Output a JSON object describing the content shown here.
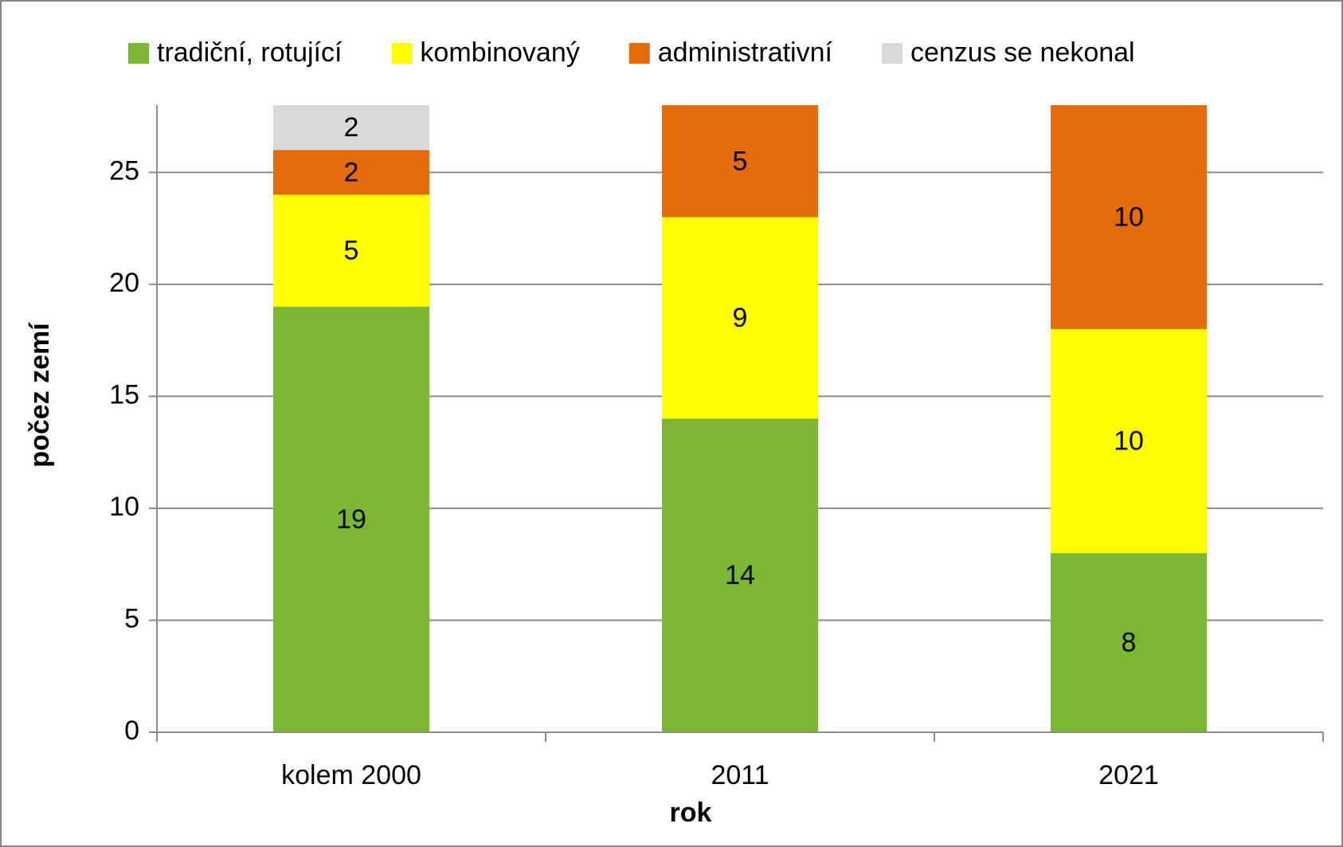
{
  "chart_data": {
    "type": "stacked_bar",
    "categories": [
      "kolem 2000",
      "2011",
      "2021"
    ],
    "series": [
      {
        "name": "tradiční, rotující",
        "color": "#7ab834",
        "values": [
          19,
          14,
          8
        ]
      },
      {
        "name": "kombinovaný",
        "color": "#ffff00",
        "values": [
          5,
          9,
          10
        ]
      },
      {
        "name": "administrativní",
        "color": "#e46c0a",
        "values": [
          2,
          5,
          10
        ]
      },
      {
        "name": "cenzus se nekonal",
        "color": "#d9d9d9",
        "values": [
          2,
          null,
          null
        ]
      }
    ],
    "xlabel": "rok",
    "ylabel": "počez zemí",
    "ylim": [
      0,
      28
    ],
    "yticks": [
      0,
      5,
      10,
      15,
      20,
      25
    ],
    "grid": true,
    "legend": "top"
  }
}
